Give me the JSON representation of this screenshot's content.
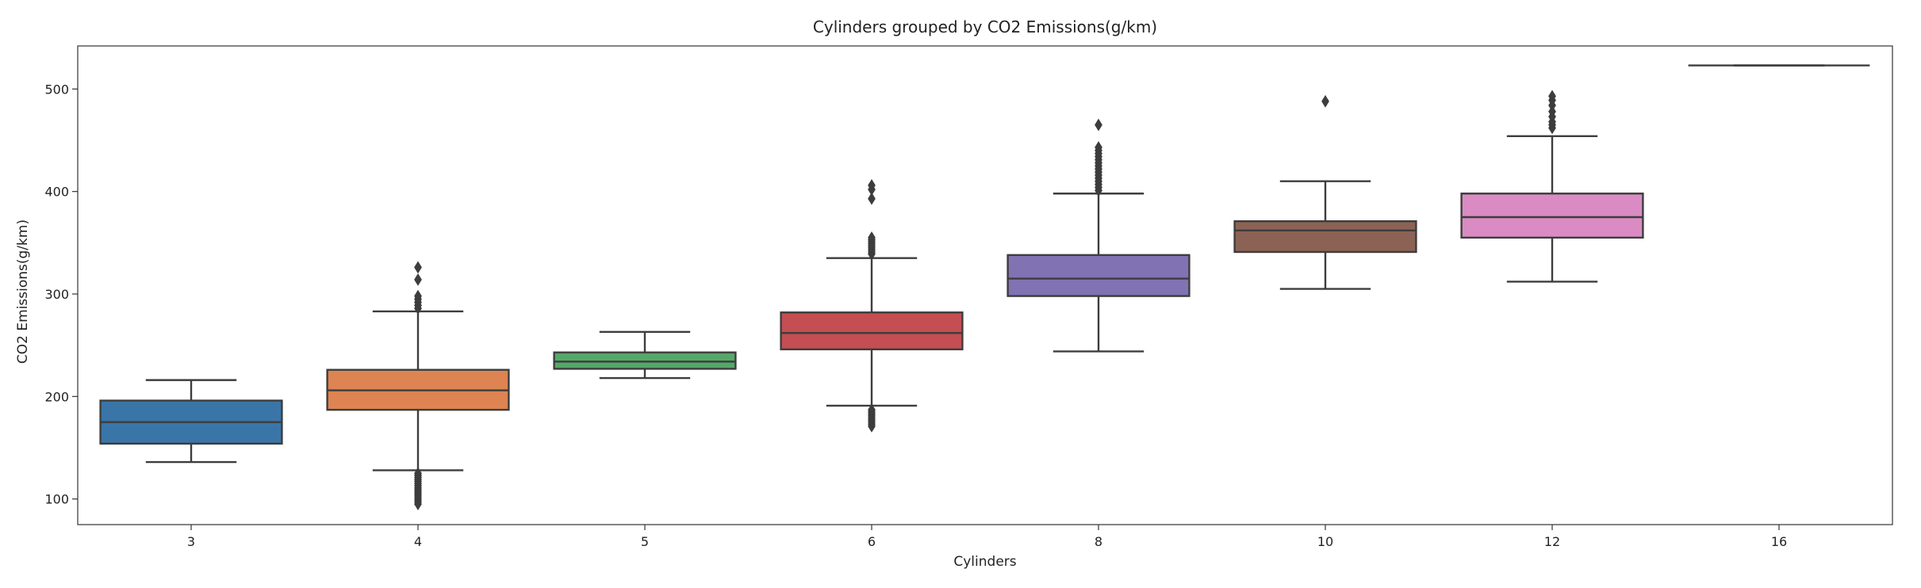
{
  "chart_data": {
    "type": "box",
    "title": "Cylinders grouped by CO2 Emissions(g/km)",
    "xlabel": "Cylinders",
    "ylabel": "CO2 Emissions(g/km)",
    "ylim": [
      75,
      542
    ],
    "yticks": [
      100,
      200,
      300,
      400,
      500
    ],
    "grid": false,
    "legend": "none",
    "categories": [
      "3",
      "4",
      "5",
      "6",
      "8",
      "10",
      "12",
      "16"
    ],
    "boxes": [
      {
        "category": "3",
        "color": "#3a75a8",
        "whisker_low": 136,
        "q1": 154,
        "median": 175,
        "q3": 196,
        "whisker_high": 216,
        "outliers": []
      },
      {
        "category": "4",
        "color": "#dd8452",
        "whisker_low": 128,
        "q1": 187,
        "median": 206,
        "q3": 226,
        "whisker_high": 283,
        "outliers": [
          95,
          97,
          99,
          101,
          103,
          105,
          107,
          109,
          111,
          113,
          115,
          117,
          119,
          121,
          123,
          125,
          286,
          289,
          292,
          295,
          298,
          314,
          326
        ]
      },
      {
        "category": "5",
        "color": "#55a868",
        "whisker_low": 218,
        "q1": 227,
        "median": 234,
        "q3": 243,
        "whisker_high": 263,
        "outliers": []
      },
      {
        "category": "6",
        "color": "#c44e52",
        "whisker_low": 191,
        "q1": 246,
        "median": 262,
        "q3": 282,
        "whisker_high": 335,
        "outliers": [
          171,
          173,
          175,
          177,
          179,
          181,
          183,
          185,
          187,
          339,
          341,
          343,
          345,
          347,
          349,
          351,
          353,
          355,
          393,
          402,
          406
        ]
      },
      {
        "category": "8",
        "color": "#8172b3",
        "whisker_low": 244,
        "q1": 298,
        "median": 315,
        "q3": 338,
        "whisker_high": 398,
        "outliers": [
          401,
          404,
          407,
          410,
          413,
          416,
          419,
          422,
          425,
          428,
          431,
          434,
          437,
          440,
          443,
          465
        ]
      },
      {
        "category": "10",
        "color": "#8c6254",
        "whisker_low": 305,
        "q1": 341,
        "median": 362,
        "q3": 371,
        "whisker_high": 410,
        "outliers": [
          488
        ]
      },
      {
        "category": "12",
        "color": "#da8bc3",
        "whisker_low": 312,
        "q1": 355,
        "median": 375,
        "q3": 398,
        "whisker_high": 454,
        "outliers": [
          462,
          465,
          468,
          473,
          478,
          484,
          489,
          493
        ]
      },
      {
        "category": "16",
        "color": "#8c8c8c",
        "whisker_low": 523,
        "q1": 523,
        "median": 523,
        "q3": 523,
        "whisker_high": 523,
        "outliers": []
      }
    ]
  }
}
